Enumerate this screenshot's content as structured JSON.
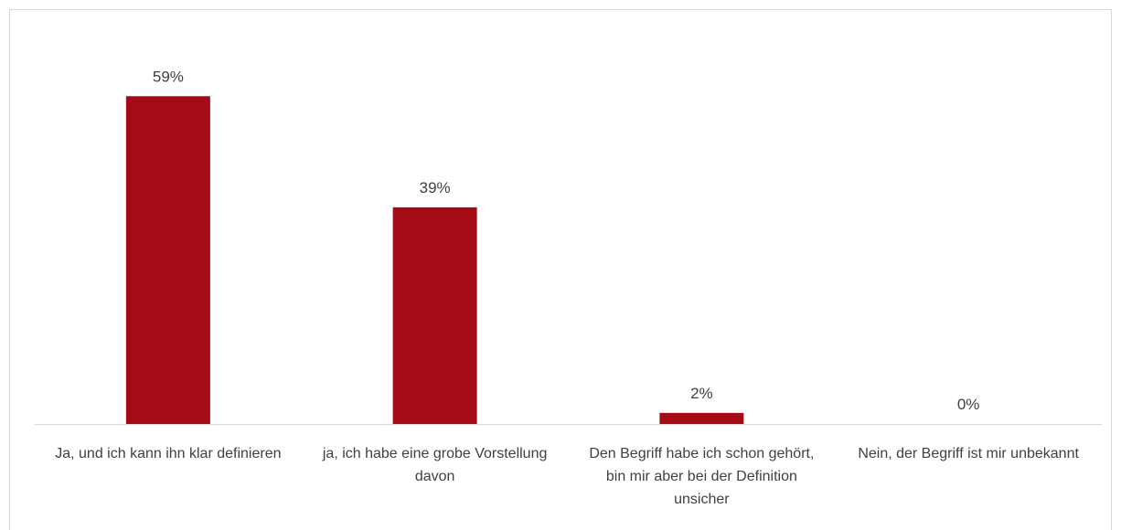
{
  "chart_data": {
    "type": "bar",
    "categories": [
      "Ja, und ich kann ihn klar definieren",
      "ja, ich habe eine grobe Vorstellung davon",
      "Den Begriff habe ich schon gehört, bin mir aber bei der Definition unsicher",
      "Nein, der Begriff ist mir unbekannt"
    ],
    "values": [
      59,
      39,
      2,
      0
    ],
    "value_labels": [
      "59%",
      "39%",
      "2%",
      "0%"
    ],
    "color": "#a50b16"
  }
}
